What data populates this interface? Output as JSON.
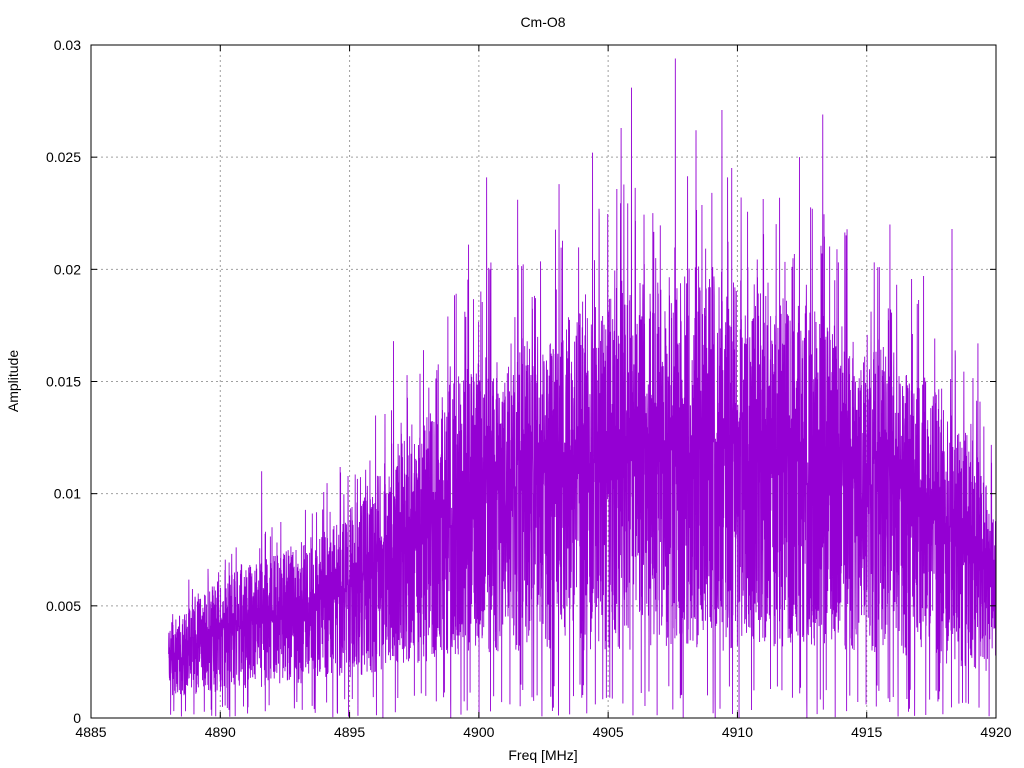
{
  "chart_data": {
    "type": "line",
    "title": "Cm-O8",
    "xlabel": "Freq [MHz]",
    "ylabel": "Amplitude",
    "xlim": [
      4885,
      4920
    ],
    "ylim": [
      0,
      0.03
    ],
    "x_ticks": [
      "4885",
      "4890",
      "4895",
      "4900",
      "4905",
      "4910",
      "4915",
      "4920"
    ],
    "y_ticks": [
      "0",
      "0.005",
      "0.01",
      "0.015",
      "0.02",
      "0.025",
      "0.03"
    ],
    "grid": true,
    "line_color": "#9400D3",
    "series": [
      {
        "x_start": 4888.0,
        "x_end": 4920.0,
        "envelope": {
          "x": [
            4888,
            4889,
            4890,
            4891,
            4892,
            4893,
            4894,
            4895,
            4896,
            4897,
            4898,
            4899,
            4900,
            4901,
            4902,
            4903,
            4904,
            4905,
            4906,
            4907,
            4908,
            4909,
            4910,
            4911,
            4912,
            4913,
            4914,
            4915,
            4916,
            4917,
            4918,
            4919,
            4920
          ],
          "upper": [
            0.004,
            0.005,
            0.006,
            0.0065,
            0.007,
            0.0075,
            0.008,
            0.009,
            0.0105,
            0.012,
            0.013,
            0.0145,
            0.0155,
            0.016,
            0.0165,
            0.017,
            0.0175,
            0.018,
            0.0185,
            0.019,
            0.0195,
            0.0195,
            0.019,
            0.0185,
            0.018,
            0.0175,
            0.017,
            0.0165,
            0.016,
            0.015,
            0.0135,
            0.012,
            0.009
          ],
          "lower": [
            0.001,
            0.001,
            0.0012,
            0.0013,
            0.0014,
            0.0015,
            0.0016,
            0.0018,
            0.002,
            0.0022,
            0.0024,
            0.0026,
            0.0028,
            0.003,
            0.003,
            0.003,
            0.003,
            0.003,
            0.003,
            0.003,
            0.003,
            0.003,
            0.003,
            0.003,
            0.003,
            0.003,
            0.003,
            0.003,
            0.0028,
            0.0026,
            0.0024,
            0.0022,
            0.002
          ]
        },
        "peaks": [
          {
            "x": 4891.6,
            "y": 0.011
          },
          {
            "x": 4896.7,
            "y": 0.0168
          },
          {
            "x": 4898.8,
            "y": 0.0179
          },
          {
            "x": 4899.6,
            "y": 0.0211
          },
          {
            "x": 4900.3,
            "y": 0.0241
          },
          {
            "x": 4901.5,
            "y": 0.0231
          },
          {
            "x": 4903.1,
            "y": 0.0238
          },
          {
            "x": 4904.4,
            "y": 0.0252
          },
          {
            "x": 4905.5,
            "y": 0.0263
          },
          {
            "x": 4905.9,
            "y": 0.0281
          },
          {
            "x": 4907.6,
            "y": 0.0294
          },
          {
            "x": 4908.4,
            "y": 0.0262
          },
          {
            "x": 4909.4,
            "y": 0.0271
          },
          {
            "x": 4912.4,
            "y": 0.025
          },
          {
            "x": 4913.3,
            "y": 0.0269
          },
          {
            "x": 4915.9,
            "y": 0.022
          },
          {
            "x": 4917.2,
            "y": 0.0197
          },
          {
            "x": 4918.3,
            "y": 0.0218
          },
          {
            "x": 4919.3,
            "y": 0.0167
          }
        ],
        "n_points": 6000
      }
    ]
  }
}
